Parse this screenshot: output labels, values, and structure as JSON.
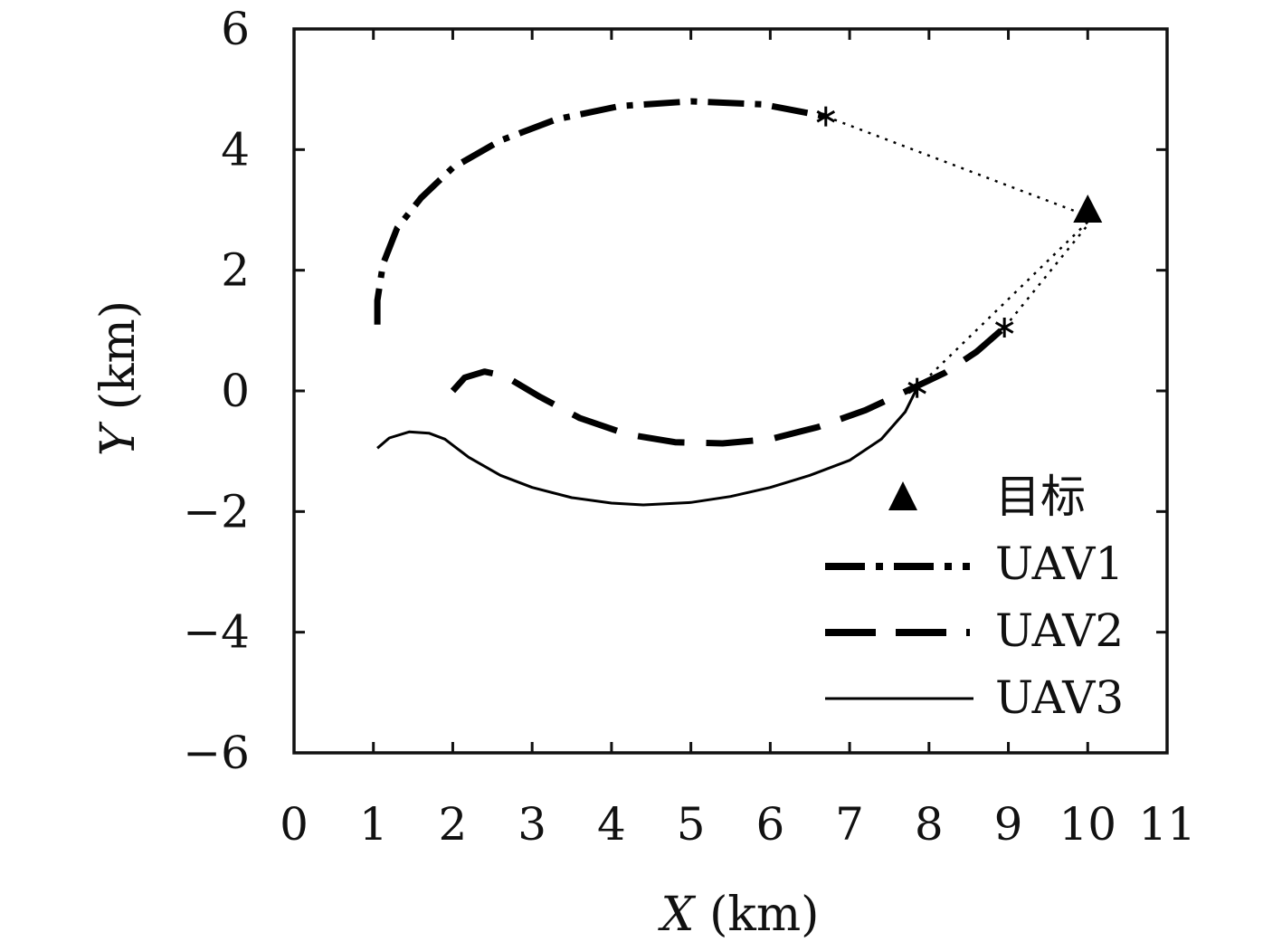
{
  "chart_data": {
    "type": "line",
    "title": "",
    "xlabel": {
      "var": "X",
      "unit": " (km)"
    },
    "ylabel": {
      "var": "Y",
      "unit": " (km)"
    },
    "xlim": [
      0,
      11
    ],
    "ylim": [
      -6,
      6
    ],
    "xticks": [
      "0",
      "1",
      "2",
      "3",
      "4",
      "5",
      "6",
      "7",
      "8",
      "9",
      "10",
      "11"
    ],
    "yticks": [
      "−6",
      "−4",
      "−2",
      "0",
      "2",
      "4",
      "6"
    ],
    "grid": false,
    "legend_position": "bottom-right",
    "target": {
      "name": "目标",
      "x": 10.0,
      "y": 3.0,
      "marker": "filled-triangle"
    },
    "series": [
      {
        "name": "UAV1",
        "style": "dash-dot-thick",
        "points": [
          [
            1.05,
            1.1
          ],
          [
            1.05,
            1.5
          ],
          [
            1.12,
            2.1
          ],
          [
            1.3,
            2.7
          ],
          [
            1.6,
            3.2
          ],
          [
            2.0,
            3.7
          ],
          [
            2.6,
            4.15
          ],
          [
            3.3,
            4.5
          ],
          [
            4.1,
            4.72
          ],
          [
            5.0,
            4.8
          ],
          [
            5.9,
            4.75
          ],
          [
            6.7,
            4.55
          ]
        ],
        "link": [
          [
            6.7,
            4.55
          ],
          [
            10.0,
            2.9
          ]
        ],
        "end_marker": [
          6.7,
          4.55
        ]
      },
      {
        "name": "UAV2",
        "style": "dashed-thick",
        "points": [
          [
            2.0,
            0.0
          ],
          [
            2.15,
            0.22
          ],
          [
            2.4,
            0.32
          ],
          [
            2.65,
            0.25
          ],
          [
            3.1,
            -0.1
          ],
          [
            3.6,
            -0.45
          ],
          [
            4.2,
            -0.72
          ],
          [
            4.8,
            -0.85
          ],
          [
            5.4,
            -0.87
          ],
          [
            6.0,
            -0.8
          ],
          [
            6.6,
            -0.6
          ],
          [
            7.2,
            -0.32
          ],
          [
            7.8,
            0.05
          ],
          [
            8.2,
            0.3
          ],
          [
            8.6,
            0.65
          ],
          [
            8.95,
            1.05
          ]
        ],
        "link": [
          [
            8.95,
            1.05
          ],
          [
            10.0,
            2.75
          ]
        ],
        "end_marker": [
          8.95,
          1.05
        ]
      },
      {
        "name": "UAV3",
        "style": "solid-thin",
        "points": [
          [
            1.05,
            -0.95
          ],
          [
            1.2,
            -0.78
          ],
          [
            1.45,
            -0.68
          ],
          [
            1.7,
            -0.7
          ],
          [
            1.9,
            -0.8
          ],
          [
            2.2,
            -1.1
          ],
          [
            2.6,
            -1.4
          ],
          [
            3.0,
            -1.6
          ],
          [
            3.5,
            -1.77
          ],
          [
            4.0,
            -1.86
          ],
          [
            4.4,
            -1.89
          ],
          [
            5.0,
            -1.85
          ],
          [
            5.5,
            -1.75
          ],
          [
            6.0,
            -1.6
          ],
          [
            6.5,
            -1.4
          ],
          [
            7.0,
            -1.15
          ],
          [
            7.4,
            -0.8
          ],
          [
            7.7,
            -0.35
          ],
          [
            7.85,
            0.05
          ]
        ],
        "link": [
          [
            7.85,
            0.05
          ],
          [
            10.0,
            2.8
          ]
        ],
        "end_marker": [
          7.85,
          0.05
        ]
      }
    ]
  }
}
